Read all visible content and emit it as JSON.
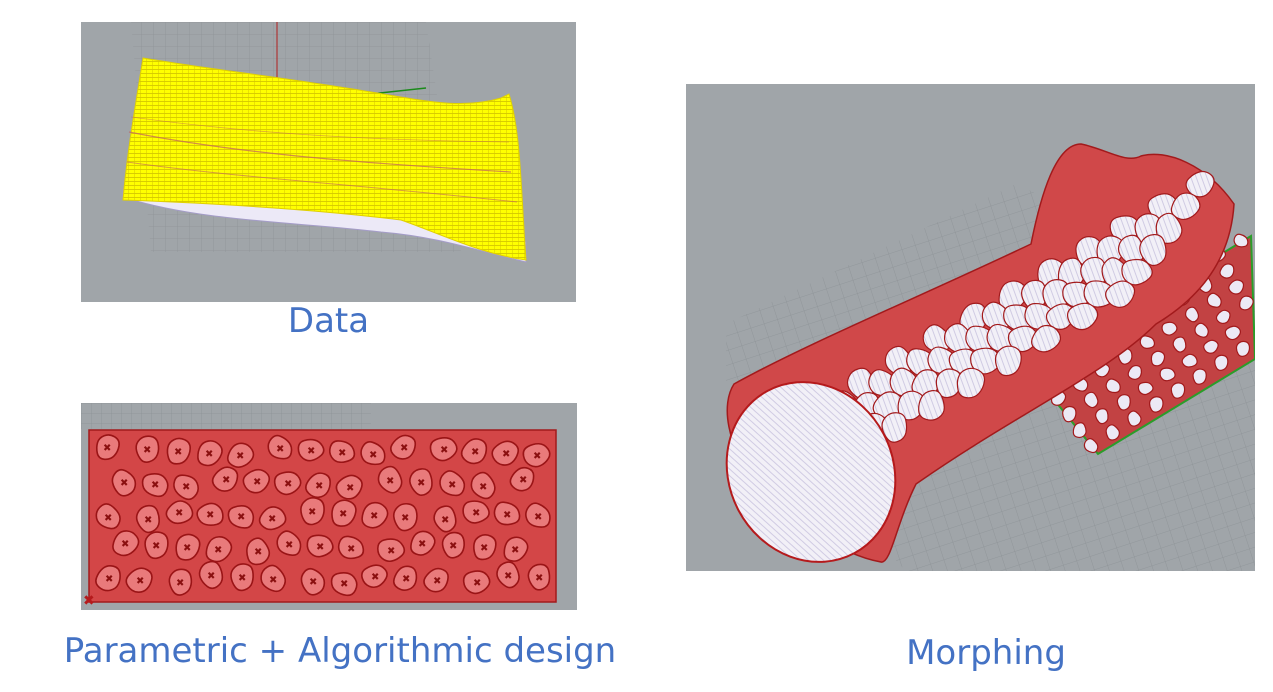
{
  "captions": {
    "data": "Data",
    "parametric": "Parametric + Algorithmic design",
    "morphing": "Morphing"
  },
  "colors": {
    "viewport_bg": "#a0a5a9",
    "grid": "#8d9296",
    "surface_yellow": "#ffff00",
    "cell_red": "#e8585a",
    "cell_stroke": "#b51a1c",
    "outline_green": "#2a9d2a",
    "caption_blue": "#4472c4"
  }
}
